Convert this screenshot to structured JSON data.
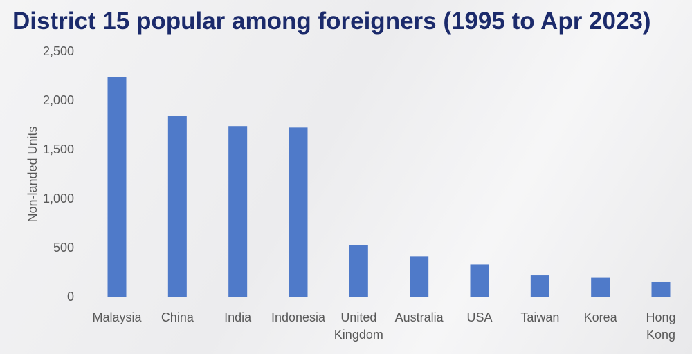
{
  "chart_data": {
    "type": "bar",
    "title": "District 15 popular among foreigners (1995 to Apr 2023)",
    "y_label": "Non-landed Units",
    "categories": [
      "Malaysia",
      "China",
      "India",
      "Indonesia",
      "United Kingdom",
      "Australia",
      "USA",
      "Taiwan",
      "Korea",
      "Hong Kong"
    ],
    "values": [
      2240,
      1845,
      1745,
      1730,
      535,
      420,
      335,
      225,
      200,
      155
    ],
    "color": "#4f7ac9",
    "ylim": [
      0,
      2500
    ],
    "yticks": [
      0,
      500,
      {
        "value": 1000,
        "label": "1,000"
      },
      {
        "value": 1500,
        "label": "1,500"
      },
      {
        "value": 2000,
        "label": "2,000"
      },
      {
        "value": 2500,
        "label": "2,500"
      }
    ],
    "grid": false
  }
}
